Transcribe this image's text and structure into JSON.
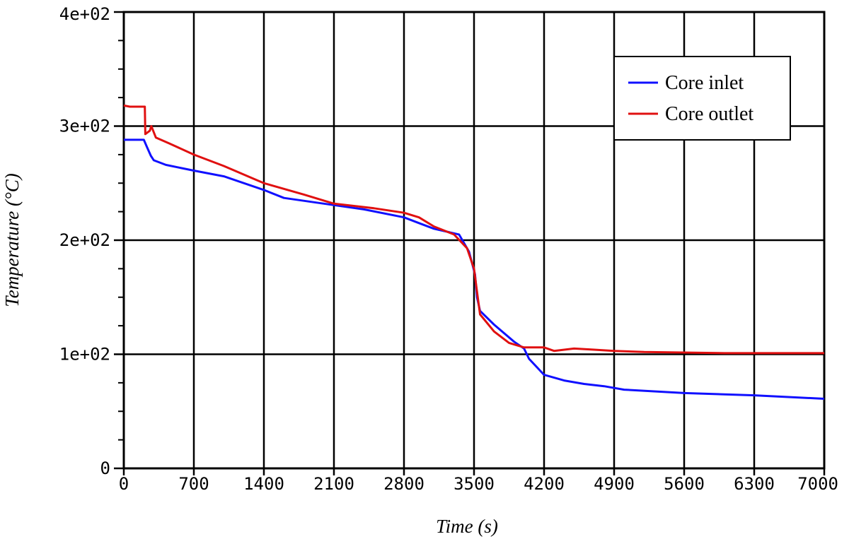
{
  "chart_data": {
    "type": "line",
    "title": "",
    "xlabel": "Time (s)",
    "ylabel": "Temperature (°C)",
    "xlim": [
      0,
      7000
    ],
    "ylim": [
      0,
      400
    ],
    "xticks": [
      0,
      700,
      1400,
      2100,
      2800,
      3500,
      4200,
      4900,
      5600,
      6300,
      7000
    ],
    "xtick_labels": [
      "0",
      "700",
      "1400",
      "2100",
      "2800",
      "3500",
      "4200",
      "4900",
      "5600",
      "6300",
      "7000"
    ],
    "yticks": [
      0,
      100,
      200,
      300,
      400
    ],
    "ytick_labels": [
      "0",
      "1e+02",
      "2e+02",
      "3e+02",
      "4e+02"
    ],
    "grid": true,
    "legend_position": "top-right",
    "series": [
      {
        "name": "Core inlet",
        "color": "#1010ff",
        "points": [
          [
            0,
            288
          ],
          [
            200,
            288
          ],
          [
            230,
            282
          ],
          [
            270,
            274
          ],
          [
            300,
            270
          ],
          [
            420,
            266
          ],
          [
            700,
            261
          ],
          [
            1000,
            256
          ],
          [
            1400,
            244
          ],
          [
            1600,
            237
          ],
          [
            2000,
            232
          ],
          [
            2400,
            227
          ],
          [
            2800,
            220
          ],
          [
            2950,
            215
          ],
          [
            3100,
            210
          ],
          [
            3350,
            205
          ],
          [
            3450,
            190
          ],
          [
            3510,
            170
          ],
          [
            3530,
            150
          ],
          [
            3560,
            138
          ],
          [
            3700,
            126
          ],
          [
            3900,
            111
          ],
          [
            4000,
            105
          ],
          [
            4050,
            96
          ],
          [
            4200,
            82
          ],
          [
            4400,
            77
          ],
          [
            4600,
            74
          ],
          [
            4800,
            72
          ],
          [
            5000,
            69
          ],
          [
            5600,
            66
          ],
          [
            6300,
            64
          ],
          [
            7000,
            61
          ]
        ]
      },
      {
        "name": "Core outlet",
        "color": "#e01010",
        "points": [
          [
            0,
            318
          ],
          [
            60,
            317
          ],
          [
            210,
            317
          ],
          [
            215,
            293
          ],
          [
            260,
            296
          ],
          [
            275,
            300
          ],
          [
            320,
            290
          ],
          [
            450,
            285
          ],
          [
            700,
            275
          ],
          [
            1000,
            265
          ],
          [
            1400,
            250
          ],
          [
            1800,
            240
          ],
          [
            2100,
            232
          ],
          [
            2500,
            228
          ],
          [
            2800,
            224
          ],
          [
            2950,
            220
          ],
          [
            3100,
            212
          ],
          [
            3300,
            205
          ],
          [
            3430,
            193
          ],
          [
            3500,
            175
          ],
          [
            3530,
            155
          ],
          [
            3560,
            135
          ],
          [
            3700,
            120
          ],
          [
            3850,
            110
          ],
          [
            4000,
            106
          ],
          [
            4200,
            106
          ],
          [
            4300,
            103
          ],
          [
            4500,
            105
          ],
          [
            4700,
            104
          ],
          [
            4900,
            103
          ],
          [
            5200,
            102
          ],
          [
            6000,
            101
          ],
          [
            7000,
            101
          ]
        ]
      }
    ]
  }
}
